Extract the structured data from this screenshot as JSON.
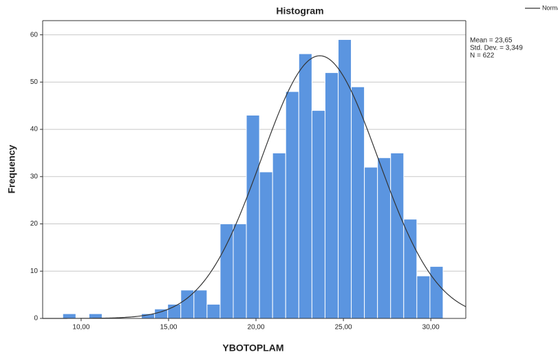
{
  "chart_data": {
    "type": "histogram",
    "title": "Histogram",
    "xlabel": "YBOTOPLAM",
    "ylabel": "Frequency",
    "bins": [
      8.95,
      9.7,
      10.45,
      11.2,
      11.95,
      12.7,
      13.45,
      14.2,
      14.95,
      15.7,
      16.45,
      17.2,
      17.95,
      18.7,
      19.45,
      20.2,
      20.95,
      21.7,
      22.45,
      23.2,
      23.95,
      24.7,
      25.45,
      26.2,
      26.95,
      27.7,
      28.45,
      29.2,
      29.95,
      30.7
    ],
    "values": [
      1,
      0,
      1,
      0,
      0,
      0,
      1,
      2,
      3,
      6,
      6,
      3,
      20,
      20,
      43,
      31,
      35,
      48,
      56,
      44,
      52,
      59,
      49,
      32,
      34,
      35,
      21,
      9,
      11
    ],
    "color": "#5b95e0",
    "curve_color": "#333333",
    "xlim": [
      7.8,
      32.0
    ],
    "ylim": [
      0,
      63
    ],
    "xticks": [
      {
        "value": 10,
        "label": "10,00"
      },
      {
        "value": 15,
        "label": "15,00"
      },
      {
        "value": 20,
        "label": "20,00"
      },
      {
        "value": 25,
        "label": "25,00"
      },
      {
        "value": 30,
        "label": "30,00"
      }
    ],
    "yticks": [
      0,
      10,
      20,
      30,
      40,
      50,
      60
    ],
    "grid": true,
    "legend": {
      "label": "Normal",
      "position": "top-right"
    },
    "stats": {
      "mean": {
        "value": 23.65,
        "label": "Mean = 23,65"
      },
      "sd": {
        "value": 3.349,
        "label": "Std. Dev. = 3,349"
      },
      "n": {
        "value": 622,
        "label": "N = 622"
      }
    }
  }
}
